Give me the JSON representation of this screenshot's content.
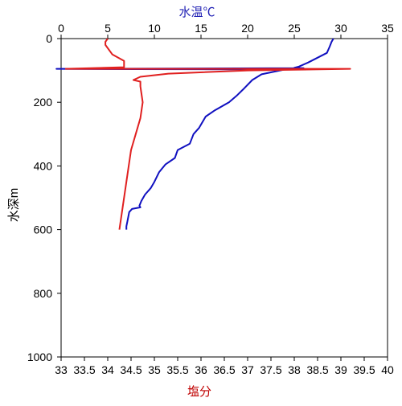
{
  "chart_data": {
    "type": "line",
    "axes": {
      "top": {
        "label": "水温℃",
        "label_color": "#1f1fb4",
        "range": [
          0,
          35
        ],
        "ticks": [
          0,
          5,
          10,
          15,
          20,
          25,
          30,
          35
        ]
      },
      "bottom": {
        "label": "塩分",
        "label_color": "#c00000",
        "range": [
          33,
          40
        ],
        "ticks": [
          33,
          33.5,
          34,
          34.5,
          35,
          35.5,
          36,
          36.5,
          37,
          37.5,
          38,
          38.5,
          39,
          39.5,
          40
        ],
        "tick_labels": [
          "33",
          "33.5",
          "34",
          "34.5",
          "35",
          "35.5",
          "36",
          "36.5",
          "37",
          "37.5",
          "38",
          "38.5",
          "39",
          "39.5",
          "40"
        ]
      },
      "left": {
        "label": "水深m",
        "range": [
          0,
          1000
        ],
        "reversed": true,
        "ticks": [
          0,
          200,
          400,
          600,
          800,
          1000
        ]
      }
    },
    "grid": false,
    "series": [
      {
        "axis": "top",
        "color": "#1010c0",
        "points": [
          [
            29.2,
            0
          ],
          [
            29.0,
            10
          ],
          [
            28.8,
            25
          ],
          [
            28.5,
            45
          ],
          [
            26.5,
            75
          ],
          [
            25.5,
            88
          ],
          [
            25.0,
            92
          ],
          [
            26.0,
            93
          ],
          [
            -0.5,
            95
          ],
          [
            24.0,
            97
          ],
          [
            21.5,
            112
          ],
          [
            20.5,
            130
          ],
          [
            19.5,
            160
          ],
          [
            18.8,
            180
          ],
          [
            18.0,
            200
          ],
          [
            16.5,
            225
          ],
          [
            15.5,
            245
          ],
          [
            14.8,
            280
          ],
          [
            14.2,
            300
          ],
          [
            13.8,
            330
          ],
          [
            12.5,
            350
          ],
          [
            12.2,
            375
          ],
          [
            11.2,
            395
          ],
          [
            10.5,
            420
          ],
          [
            10.0,
            450
          ],
          [
            9.6,
            470
          ],
          [
            9.0,
            490
          ],
          [
            8.6,
            510
          ],
          [
            8.4,
            525
          ],
          [
            8.5,
            530
          ],
          [
            7.6,
            535
          ],
          [
            7.3,
            545
          ],
          [
            7.1,
            575
          ],
          [
            7.0,
            590
          ],
          [
            7.0,
            600
          ],
          [
            8.0,
            96
          ]
        ],
        "order": [
          0,
          1,
          2,
          3,
          4,
          5,
          6,
          7,
          8,
          35,
          9,
          10,
          11,
          12,
          13,
          14,
          15,
          16,
          17,
          18,
          19,
          20,
          21,
          22,
          23,
          24,
          25,
          26,
          27,
          28,
          29,
          30,
          31,
          32,
          33,
          34
        ]
      },
      {
        "axis": "bottom",
        "color": "#e02020",
        "points": [
          [
            34.0,
            0
          ],
          [
            33.95,
            10
          ],
          [
            33.95,
            20
          ],
          [
            34.1,
            50
          ],
          [
            34.35,
            70
          ],
          [
            34.35,
            90
          ],
          [
            33.1,
            95
          ],
          [
            39.2,
            95
          ],
          [
            37.0,
            100
          ],
          [
            35.3,
            110
          ],
          [
            34.7,
            120
          ],
          [
            34.55,
            130
          ],
          [
            34.7,
            135
          ],
          [
            34.7,
            150
          ],
          [
            34.75,
            200
          ],
          [
            34.7,
            250
          ],
          [
            34.6,
            300
          ],
          [
            34.5,
            350
          ],
          [
            34.45,
            400
          ],
          [
            34.4,
            450
          ],
          [
            34.35,
            500
          ],
          [
            34.3,
            550
          ],
          [
            34.25,
            600
          ]
        ]
      }
    ]
  }
}
